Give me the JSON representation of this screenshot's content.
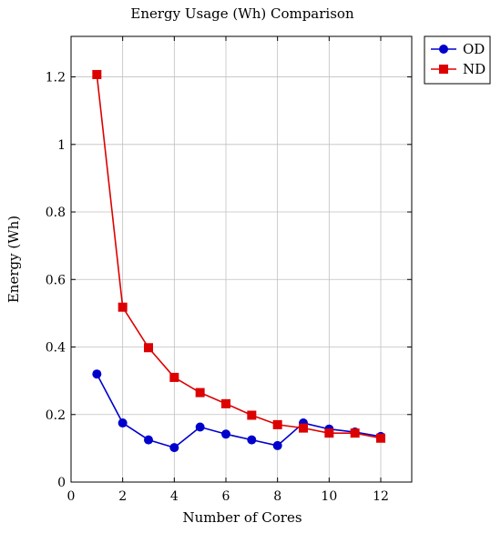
{
  "chart_data": {
    "type": "line",
    "title": "Energy Usage (Wh) Comparison",
    "xlabel": "Number of Cores",
    "ylabel": "Energy (Wh)",
    "xlim": [
      0,
      13.2
    ],
    "ylim": [
      0,
      1.32
    ],
    "xticks": [
      0,
      2,
      4,
      6,
      8,
      10,
      12
    ],
    "yticks": [
      0,
      0.2,
      0.4,
      0.6,
      0.8,
      1,
      1.2
    ],
    "grid": true,
    "legend_position": "outside-top-right",
    "x": [
      1,
      2,
      3,
      4,
      5,
      6,
      7,
      8,
      9,
      10,
      11,
      12
    ],
    "series": [
      {
        "name": "OD",
        "color": "#0000cc",
        "marker": "circle",
        "values": [
          0.32,
          0.175,
          0.125,
          0.102,
          0.163,
          0.142,
          0.125,
          0.108,
          0.175,
          0.157,
          0.148,
          0.135
        ]
      },
      {
        "name": "ND",
        "color": "#dd0000",
        "marker": "square",
        "values": [
          1.207,
          0.518,
          0.398,
          0.31,
          0.265,
          0.232,
          0.198,
          0.17,
          0.16,
          0.145,
          0.145,
          0.13
        ]
      }
    ]
  }
}
